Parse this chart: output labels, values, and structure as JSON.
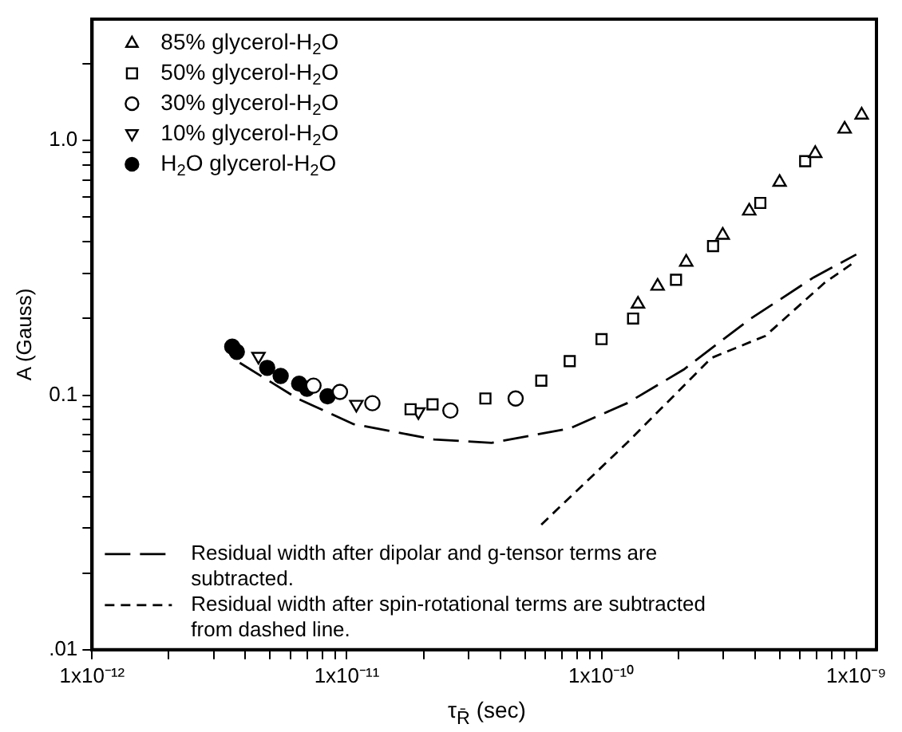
{
  "chart_data": {
    "type": "scatter",
    "xlabel": "τ$_{R̄}$ (sec)",
    "ylabel": "A (Gauss)",
    "log": "xy",
    "xlim": [
      1e-12,
      1.2e-09
    ],
    "ylim": [
      0.01,
      3
    ],
    "xticks": [
      {
        "value": 1e-12,
        "label": "1x10⁻¹²"
      },
      {
        "value": 2e-12,
        "label": null
      },
      {
        "value": 3e-12,
        "label": null
      },
      {
        "value": 4e-12,
        "label": null
      },
      {
        "value": 5e-12,
        "label": null
      },
      {
        "value": 6e-12,
        "label": null
      },
      {
        "value": 7e-12,
        "label": null
      },
      {
        "value": 8e-12,
        "label": null
      },
      {
        "value": 9e-12,
        "label": null
      },
      {
        "value": 1e-11,
        "label": "1x10⁻¹¹"
      },
      {
        "value": 2e-11,
        "label": null
      },
      {
        "value": 3e-11,
        "label": null
      },
      {
        "value": 4e-11,
        "label": null
      },
      {
        "value": 5e-11,
        "label": null
      },
      {
        "value": 6e-11,
        "label": null
      },
      {
        "value": 7e-11,
        "label": null
      },
      {
        "value": 8e-11,
        "label": null
      },
      {
        "value": 9e-11,
        "label": null
      },
      {
        "value": 1e-10,
        "label": "1x10⁻¹⁰"
      },
      {
        "value": 2e-10,
        "label": null
      },
      {
        "value": 3e-10,
        "label": null
      },
      {
        "value": 4e-10,
        "label": null
      },
      {
        "value": 5e-10,
        "label": null
      },
      {
        "value": 6e-10,
        "label": null
      },
      {
        "value": 7e-10,
        "label": null
      },
      {
        "value": 8e-10,
        "label": null
      },
      {
        "value": 9e-10,
        "label": null
      },
      {
        "value": 1e-09,
        "label": "1x10⁻⁹"
      }
    ],
    "yticks": [
      {
        "value": 0.01,
        "label": ".01"
      },
      {
        "value": 0.02,
        "label": null
      },
      {
        "value": 0.03,
        "label": null
      },
      {
        "value": 0.04,
        "label": null
      },
      {
        "value": 0.05,
        "label": null
      },
      {
        "value": 0.06,
        "label": null
      },
      {
        "value": 0.07,
        "label": null
      },
      {
        "value": 0.08,
        "label": null
      },
      {
        "value": 0.09,
        "label": null
      },
      {
        "value": 0.1,
        "label": "0.1"
      },
      {
        "value": 0.2,
        "label": null
      },
      {
        "value": 0.3,
        "label": null
      },
      {
        "value": 0.4,
        "label": null
      },
      {
        "value": 0.5,
        "label": null
      },
      {
        "value": 0.6,
        "label": null
      },
      {
        "value": 0.7,
        "label": null
      },
      {
        "value": 0.8,
        "label": null
      },
      {
        "value": 0.9,
        "label": null
      },
      {
        "value": 1,
        "label": "1.0"
      },
      {
        "value": 2,
        "label": null
      }
    ],
    "grid": false,
    "legend": "left",
    "series": [
      {
        "name": "85% glycerol-H$_{2}$O",
        "type": "scatter",
        "marker": "triangle",
        "color": "#000000",
        "x": [
          1.39e-10,
          1.66e-10,
          2.15e-10,
          2.99e-10,
          3.8e-10,
          5e-10,
          6.9e-10,
          9e-10,
          1.05e-09
        ],
        "values": [
          0.228,
          0.268,
          0.333,
          0.425,
          0.529,
          0.686,
          0.89,
          1.11,
          1.26
        ]
      },
      {
        "name": "50% glycerol-H$_{2}$O",
        "type": "scatter",
        "marker": "square",
        "color": "#000000",
        "x": [
          1.78e-11,
          2.17e-11,
          3.5e-11,
          5.8e-11,
          7.5e-11,
          1e-10,
          1.33e-10,
          1.96e-10,
          2.74e-10,
          4.2e-10,
          6.3e-10
        ],
        "values": [
          0.088,
          0.092,
          0.097,
          0.114,
          0.136,
          0.166,
          0.2,
          0.284,
          0.385,
          0.569,
          0.83
        ]
      },
      {
        "name": "30% glycerol-H$_{2}$O",
        "type": "scatter",
        "marker": "circle",
        "color": "#000000",
        "x": [
          7.4e-12,
          9.4e-12,
          1.26e-11,
          2.55e-11,
          4.6e-11
        ],
        "values": [
          0.109,
          0.103,
          0.093,
          0.087,
          0.097
        ]
      },
      {
        "name": "10% glycerol-H$_{2}$O",
        "type": "scatter",
        "marker": "triangle_down",
        "color": "#000000",
        "x": [
          4.5e-12,
          1.09e-11,
          1.91e-11
        ],
        "values": [
          0.142,
          0.092,
          0.086
        ]
      },
      {
        "name": "H$_{2}$O glycerol-H$_{2}$O",
        "type": "scatter",
        "marker": "circle_filled",
        "color": "#000000",
        "x": [
          3.55e-12,
          3.7e-12,
          4.87e-12,
          5.5e-12,
          6.5e-12,
          6.98e-12,
          8.4e-12
        ],
        "values": [
          0.155,
          0.148,
          0.128,
          0.119,
          0.111,
          0.106,
          0.099
        ]
      },
      {
        "name": "Residual width after dipolar and g-tensor terms are subtracted.",
        "type": "line",
        "line_style": "long_dashed",
        "color": "#000000",
        "x": [
          3.8e-12,
          6.4e-12,
          1.06e-11,
          2.2e-11,
          3.7e-11,
          7.5e-11,
          1.26e-10,
          2.1e-10,
          3.8e-10,
          6.8e-10,
          1e-09
        ],
        "values": [
          0.134,
          0.097,
          0.077,
          0.067,
          0.065,
          0.074,
          0.093,
          0.126,
          0.198,
          0.29,
          0.357
        ]
      },
      {
        "name": "Residual width after spin-rotational terms are subtracted from dashed line.",
        "type": "line",
        "line_style": "dashed",
        "color": "#000000",
        "x": [
          5.8e-11,
          1.26e-10,
          2.7e-10,
          4.4e-10,
          7.5e-10,
          1e-09
        ],
        "values": [
          0.031,
          0.065,
          0.14,
          0.171,
          0.276,
          0.337
        ]
      }
    ]
  }
}
